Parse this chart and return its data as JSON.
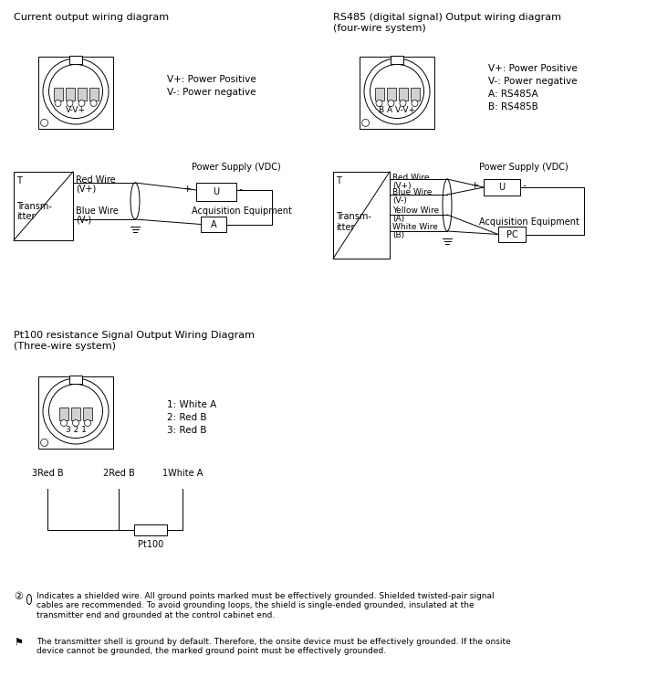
{
  "bg_color": "#ffffff",
  "figsize": [
    7.09,
    7.53
  ],
  "dpi": 100,
  "section1_title": "Current output wiring diagram",
  "section2_title": "RS485 (digital signal) Output wiring diagram\n(four-wire system)",
  "section3_title": "Pt100 resistance Signal Output Wiring Diagram\n(Three-wire system)",
  "legend1_line1": "V+: Power Positive",
  "legend1_line2": "V-: Power negative",
  "legend2_line1": "V+: Power Positive",
  "legend2_line2": "V-: Power negative",
  "legend2_line3": "A: RS485A",
  "legend2_line4": "B: RS485B",
  "legend3_line1": "1: White A",
  "legend3_line2": "2: Red B",
  "legend3_line3": "3: Red B",
  "note1_icon": "②",
  "note1_text": "Indicates a shielded wire. All ground points marked must be effectively grounded. Shielded twisted-pair signal\ncables are recommended. To avoid grounding loops, the shield is single-ended grounded, insulated at the\ntransmitter end and grounded at the control cabinet end.",
  "note2_icon": "⚑",
  "note2_text": "The transmitter shell is ground by default. Therefore, the onsite device must be effectively grounded. If the onsite\ndevice cannot be grounded, the marked ground point must be effectively grounded."
}
